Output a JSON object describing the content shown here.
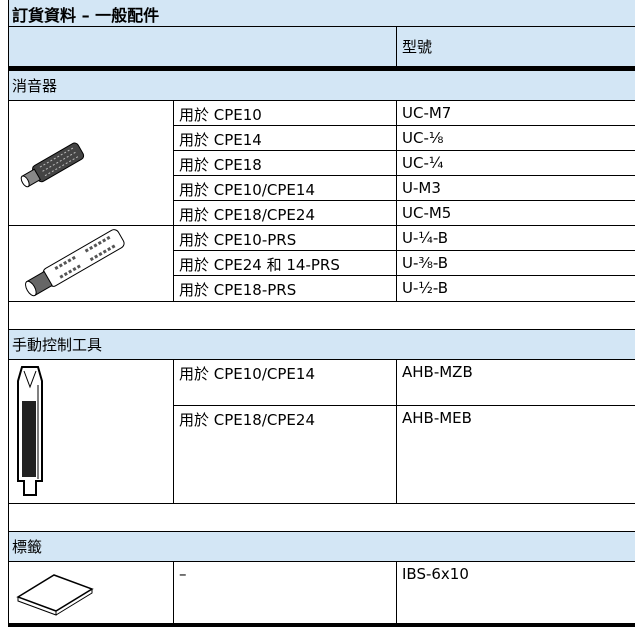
{
  "header": {
    "title": "訂貨資料 – 一般配件",
    "model_heading": "型號"
  },
  "sections": [
    {
      "title": "消音器",
      "groups": [
        {
          "rows": [
            {
              "description": "用於 CPE10",
              "model": "UC-M7"
            },
            {
              "description": "用於 CPE14",
              "model": "UC-⅛"
            },
            {
              "description": "用於 CPE18",
              "model": "UC-¼"
            },
            {
              "description": "用於 CPE10/CPE14",
              "model": "U-M3"
            },
            {
              "description": "用於 CPE18/CPE24",
              "model": "UC-M5"
            }
          ]
        },
        {
          "rows": [
            {
              "description": "用於 CPE10-PRS",
              "model": "U-¼-B"
            },
            {
              "description": "用於 CPE24 和 14-PRS",
              "model": "U-⅜-B"
            },
            {
              "description": "用於 CPE18-PRS",
              "model": "U-½-B"
            }
          ]
        }
      ]
    },
    {
      "title": "手動控制工具",
      "groups": [
        {
          "rows": [
            {
              "description": "用於 CPE10/CPE14",
              "model": "AHB-MZB"
            },
            {
              "description": "用於 CPE18/CPE24",
              "model": "AHB-MEB"
            }
          ]
        }
      ]
    },
    {
      "title": "標籤",
      "groups": [
        {
          "rows": [
            {
              "description": "–",
              "model": "IBS-6x10"
            }
          ]
        }
      ]
    }
  ]
}
